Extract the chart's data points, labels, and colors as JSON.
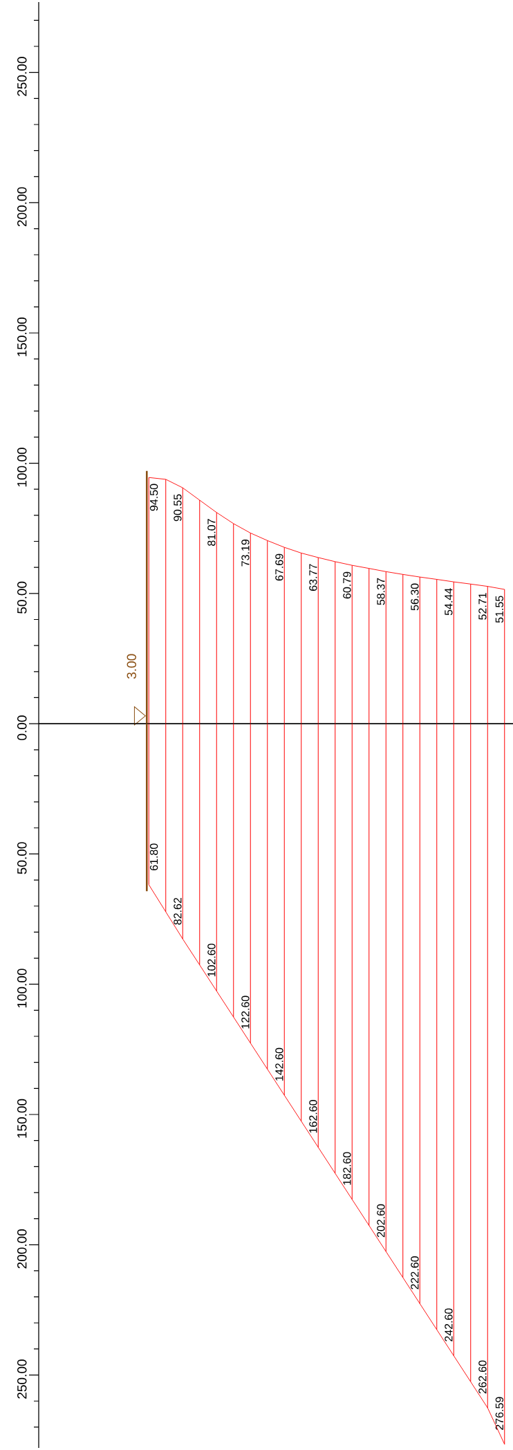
{
  "chart_data": [
    {
      "type": "bar",
      "categories": [
        null,
        null,
        null,
        null,
        null,
        null,
        null,
        null,
        null,
        null,
        null,
        null,
        null,
        null,
        null,
        null,
        null,
        null,
        null,
        null,
        null,
        null,
        null,
        null,
        null,
        null,
        null,
        null
      ],
      "series": [
        {
          "color": "#ff0000",
          "values": [
            null,
            null,
            null,
            null,
            null,
            null,
            94.5,
            93.8,
            90.55,
            85.8,
            81.07,
            76.8,
            73.19,
            70.3,
            67.69,
            65.5,
            63.77,
            62.2,
            60.79,
            59.6,
            58.37,
            57.3,
            56.3,
            55.4,
            54.44,
            53.6,
            52.71,
            51.55
          ],
          "value_labels": [
            null,
            null,
            null,
            null,
            null,
            null,
            "94.50",
            null,
            "90.55",
            null,
            "81.07",
            null,
            "73.19",
            null,
            "67.69",
            null,
            "63.77",
            null,
            "60.79",
            null,
            "58.37",
            null,
            "56.30",
            null,
            "54.44",
            null,
            "52.71",
            "51.55"
          ]
        },
        {
          "type": "line",
          "color": "#ff0000",
          "values": [
            null,
            null,
            null,
            null,
            null,
            null,
            94.5,
            93.8,
            90.55,
            85.8,
            81.07,
            76.8,
            73.19,
            70.3,
            67.69,
            65.5,
            63.77,
            62.2,
            60.79,
            59.6,
            58.37,
            57.3,
            56.3,
            55.4,
            54.44,
            53.6,
            52.71,
            51.55
          ]
        }
      ],
      "ylim": [
        0,
        277
      ],
      "yticks": [
        {
          "value": 0,
          "label": "0.00"
        },
        {
          "value": 10,
          "label": null
        },
        {
          "value": 20,
          "label": null
        },
        {
          "value": 30,
          "label": null
        },
        {
          "value": 40,
          "label": null
        },
        {
          "value": 50,
          "label": "50.00"
        },
        {
          "value": 60,
          "label": null
        },
        {
          "value": 70,
          "label": null
        },
        {
          "value": 80,
          "label": null
        },
        {
          "value": 90,
          "label": null
        },
        {
          "value": 100,
          "label": "100.00"
        },
        {
          "value": 110,
          "label": null
        },
        {
          "value": 120,
          "label": null
        },
        {
          "value": 130,
          "label": null
        },
        {
          "value": 140,
          "label": null
        },
        {
          "value": 150,
          "label": "150.00"
        },
        {
          "value": 160,
          "label": null
        },
        {
          "value": 170,
          "label": null
        },
        {
          "value": 180,
          "label": null
        },
        {
          "value": 190,
          "label": null
        },
        {
          "value": 200,
          "label": "200.00"
        },
        {
          "value": 210,
          "label": null
        },
        {
          "value": 220,
          "label": null
        },
        {
          "value": 230,
          "label": null
        },
        {
          "value": 240,
          "label": null
        },
        {
          "value": 250,
          "label": "250.00"
        },
        {
          "value": 260,
          "label": null
        },
        {
          "value": 270,
          "label": null
        }
      ],
      "tick_labels": "y",
      "annotations": [
        "3.00"
      ]
    },
    {
      "type": "bar",
      "categories": [
        null,
        null,
        null,
        null,
        null,
        null,
        null,
        null,
        null,
        null,
        null,
        null,
        null,
        null,
        null,
        null,
        null,
        null,
        null,
        null,
        null,
        null,
        null,
        null,
        null,
        null,
        null,
        null
      ],
      "series": [
        {
          "color": "#ff0000",
          "values": [
            null,
            null,
            null,
            null,
            null,
            null,
            61.8,
            72.2,
            82.62,
            92.6,
            102.6,
            112.6,
            122.6,
            132.6,
            142.6,
            152.6,
            162.6,
            172.6,
            182.6,
            192.6,
            202.6,
            212.6,
            222.6,
            232.6,
            242.6,
            252.6,
            262.6,
            276.59
          ],
          "value_labels": [
            null,
            null,
            null,
            null,
            null,
            null,
            "61.80",
            null,
            "82.62",
            null,
            "102.60",
            null,
            "122.60",
            null,
            "142.60",
            null,
            "162.60",
            null,
            "182.60",
            null,
            "202.60",
            null,
            "222.60",
            null,
            "242.60",
            null,
            "262.60",
            "276.59"
          ]
        },
        {
          "type": "line",
          "color": "#ff0000",
          "values": [
            null,
            null,
            null,
            null,
            null,
            null,
            61.8,
            72.2,
            82.62,
            92.6,
            102.6,
            112.6,
            122.6,
            132.6,
            142.6,
            152.6,
            162.6,
            172.6,
            182.6,
            192.6,
            202.6,
            212.6,
            222.6,
            232.6,
            242.6,
            252.6,
            262.6,
            276.59
          ]
        }
      ],
      "ylim": [
        278,
        0
      ],
      "yticks": [
        {
          "value": 10,
          "label": null
        },
        {
          "value": 20,
          "label": null
        },
        {
          "value": 30,
          "label": null
        },
        {
          "value": 40,
          "label": null
        },
        {
          "value": 50,
          "label": "50.00"
        },
        {
          "value": 60,
          "label": null
        },
        {
          "value": 70,
          "label": null
        },
        {
          "value": 80,
          "label": null
        },
        {
          "value": 90,
          "label": null
        },
        {
          "value": 100,
          "label": "100.00"
        },
        {
          "value": 110,
          "label": null
        },
        {
          "value": 120,
          "label": null
        },
        {
          "value": 130,
          "label": null
        },
        {
          "value": 140,
          "label": null
        },
        {
          "value": 150,
          "label": "150.00"
        },
        {
          "value": 160,
          "label": null
        },
        {
          "value": 170,
          "label": null
        },
        {
          "value": 180,
          "label": null
        },
        {
          "value": 190,
          "label": null
        },
        {
          "value": 200,
          "label": "200.00"
        },
        {
          "value": 210,
          "label": null
        },
        {
          "value": 220,
          "label": null
        },
        {
          "value": 230,
          "label": null
        },
        {
          "value": 240,
          "label": null
        },
        {
          "value": 250,
          "label": "250.00"
        },
        {
          "value": 260,
          "label": null
        },
        {
          "value": 270,
          "label": null
        }
      ],
      "tick_labels": "y"
    }
  ]
}
